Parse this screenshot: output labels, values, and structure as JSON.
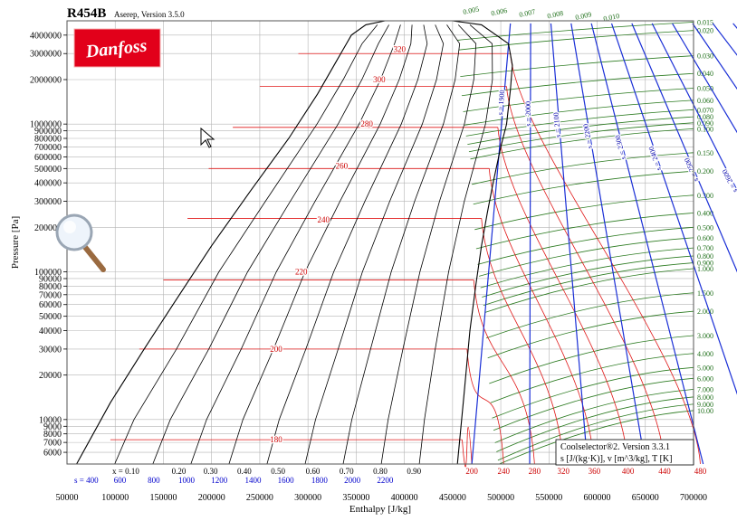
{
  "header": {
    "title": "R454B",
    "subtitle": "Aserep, Version 3.5.0",
    "logo_text": "Danfoss"
  },
  "info_box": {
    "line1": "Coolselector®2. Version 3.3.1",
    "line2": "s [J/(kg·K)], v [m^3/kg], T [K]"
  },
  "colors": {
    "background": "#ffffff",
    "grid": "#b4b4b4",
    "saturation": "#000000",
    "quality": "#000000",
    "isentrope": "#1a2fd6",
    "isotherm": "#e01818",
    "isochore": "#2a7a1f",
    "logo_bg": "#e2001a",
    "label_blue": "#0000cc",
    "label_red": "#cc0000",
    "label_green": "#1f6f1a"
  },
  "chart_data": {
    "type": "line",
    "title": "R454B",
    "xlabel": "Enthalpy [J/kg]",
    "ylabel": "Pressure [Pa]",
    "xlim": [
      50000,
      700000
    ],
    "ylim": [
      5000,
      5000000
    ],
    "y_scale": "log",
    "grid": true,
    "x_ticks": [
      50000,
      100000,
      150000,
      200000,
      250000,
      300000,
      350000,
      400000,
      450000,
      500000,
      550000,
      600000,
      650000,
      700000
    ],
    "x_tick_labels": [
      "50000",
      "100000",
      "150000",
      "200000",
      "250000",
      "300000",
      "350000",
      "400000",
      "450000",
      "500000",
      "550000",
      "600000",
      "650000",
      "700000"
    ],
    "y_ticks": [
      6000,
      7000,
      8000,
      9000,
      10000,
      20000,
      30000,
      40000,
      50000,
      60000,
      70000,
      80000,
      90000,
      100000,
      200000,
      300000,
      400000,
      500000,
      600000,
      700000,
      800000,
      900000,
      1000000,
      2000000,
      3000000,
      4000000
    ],
    "y_tick_labels": [
      "6000",
      "7000",
      "8000",
      "9000",
      "10000",
      "20000",
      "30000",
      "40000",
      "50000",
      "60000",
      "70000",
      "80000",
      "90000",
      "100000",
      "200000",
      "300000",
      "400000",
      "500000",
      "600000",
      "700000",
      "800000",
      "900000",
      "1000000",
      "2000000",
      "3000000",
      "4000000"
    ],
    "series": [
      {
        "kind": "saturation_liquid",
        "points": [
          [
            60000,
            5000
          ],
          [
            95000,
            13000
          ],
          [
            130000,
            30000
          ],
          [
            160000,
            60000
          ],
          [
            200000,
            150000
          ],
          [
            240000,
            350000
          ],
          [
            280000,
            800000
          ],
          [
            310000,
            1600000
          ],
          [
            330000,
            2700000
          ],
          [
            345000,
            4000000
          ],
          [
            360000,
            4700000
          ],
          [
            380000,
            5000000
          ]
        ]
      },
      {
        "kind": "saturation_vapor",
        "points": [
          [
            455000,
            5000
          ],
          [
            462000,
            15000
          ],
          [
            468000,
            40000
          ],
          [
            474000,
            80000
          ],
          [
            480000,
            150000
          ],
          [
            486000,
            250000
          ],
          [
            492000,
            400000
          ],
          [
            500000,
            700000
          ],
          [
            506000,
            1000000
          ],
          [
            510000,
            1700000
          ],
          [
            512000,
            2500000
          ],
          [
            508000,
            3500000
          ],
          [
            480000,
            4700000
          ],
          [
            450000,
            5000000
          ]
        ]
      }
    ],
    "quality_labels": [
      "x = 0.10",
      "0.20",
      "0.30",
      "0.40",
      "0.50",
      "0.60",
      "0.70",
      "0.80",
      "0.90"
    ],
    "quality_label_h": [
      111000,
      166000,
      199000,
      234000,
      269000,
      305000,
      340000,
      375000,
      410000
    ],
    "entropy_bottom_labels": [
      "s = 400",
      "600",
      "800",
      "1000",
      "1200",
      "1400",
      "1600",
      "1800",
      "2000",
      "2200"
    ],
    "entropy_bottom_h": [
      70000,
      105000,
      140000,
      174000,
      208000,
      243000,
      277000,
      312000,
      346000,
      380000
    ],
    "entropy_diag_labels": [
      "s = 1900",
      "s = 2000",
      "s = 2100",
      "s = 2200",
      "s = 2300",
      "s = 2400",
      "s = 2500",
      "s = 2600",
      "s = 2700",
      "s = 2800",
      "s = 2900",
      "s = 3000",
      "s = 3100"
    ],
    "isotherms_K": [
      180,
      200,
      220,
      240,
      260,
      280,
      300,
      320
    ],
    "isotherm_label_h": [
      267000,
      267000,
      293000,
      316000,
      335000,
      361000,
      374000,
      395000
    ],
    "isotherm_label_p": [
      7300,
      30000,
      100000,
      225000,
      520000,
      1000000,
      2000000,
      3200000
    ],
    "isotherm_levels": [
      {
        "T": 180,
        "p": 7300,
        "hl": 95000,
        "hv": 460000
      },
      {
        "T": 200,
        "p": 30000,
        "hl": 125000,
        "hv": 465000
      },
      {
        "T": 220,
        "p": 88000,
        "hl": 150000,
        "hv": 472000
      },
      {
        "T": 240,
        "p": 230000,
        "hl": 175000,
        "hv": 480000
      },
      {
        "T": 260,
        "p": 500000,
        "hl": 197000,
        "hv": 488000
      },
      {
        "T": 280,
        "p": 950000,
        "hl": 222000,
        "hv": 497000
      },
      {
        "T": 300,
        "p": 1800000,
        "hl": 250000,
        "hv": 506000
      },
      {
        "T": 320,
        "p": 3000000,
        "hl": 290000,
        "hv": 510000
      }
    ],
    "isotherm_bottom_labels": [
      "200",
      "240",
      "280",
      "320",
      "360",
      "400",
      "440",
      "480"
    ],
    "isotherm_bottom_h": [
      470000,
      503000,
      535000,
      565000,
      597000,
      632000,
      670000,
      707000
    ],
    "isochore_top_labels": [
      "0.005",
      "0.006",
      "0.007",
      "0.008",
      "0.009",
      "0.010"
    ],
    "isochore_right_labels": [
      "0.015",
      "0.020",
      "0.030",
      "0.040",
      "0.050",
      "0.060",
      "0.070",
      "0.080",
      "0.090",
      "0.100",
      "0.150",
      "0.200",
      "0.300",
      "0.400",
      "0.500",
      "0.600",
      "0.700",
      "0.800",
      "0.900",
      "1.000",
      "1.500",
      "2.000",
      "3.000",
      "4.000",
      "5.000",
      "6.000",
      "7.000",
      "8.000",
      "9.000",
      "10.00"
    ],
    "isochore_right_p": [
      4900000,
      4300000,
      2900000,
      2200000,
      1750000,
      1450000,
      1250000,
      1120000,
      1020000,
      930000,
      640000,
      480000,
      330000,
      250000,
      200000,
      170000,
      145000,
      128000,
      115000,
      105000,
      72000,
      54000,
      37000,
      28000,
      22500,
      19000,
      16000,
      14200,
      12700,
      11500
    ]
  }
}
